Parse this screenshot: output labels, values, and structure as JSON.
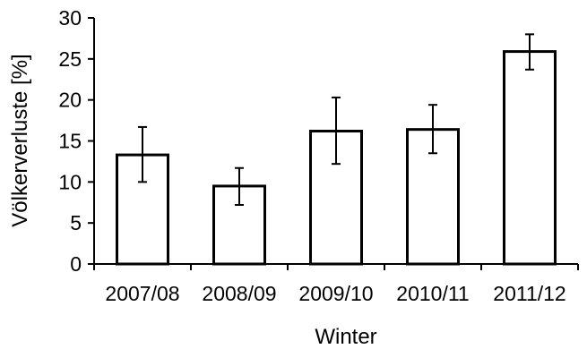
{
  "chart_data": {
    "type": "bar",
    "categories": [
      "2007/08",
      "2008/09",
      "2009/10",
      "2010/11",
      "2011/12"
    ],
    "values": [
      13.3,
      9.5,
      16.2,
      16.4,
      25.9
    ],
    "error_low": [
      10.0,
      7.2,
      12.2,
      13.5,
      23.7
    ],
    "error_high": [
      16.7,
      11.7,
      20.3,
      19.4,
      28.0
    ],
    "xlabel": "Winter",
    "ylabel": "Völkerverluste [%]",
    "ylim": [
      0,
      30
    ],
    "yticks": [
      0,
      5,
      10,
      15,
      20,
      25,
      30
    ],
    "grid": false,
    "legend": "none",
    "colors": {
      "bar_fill": "#ffffff",
      "bar_stroke": "#000000",
      "axis": "#000000",
      "error_bar": "#000000"
    }
  }
}
